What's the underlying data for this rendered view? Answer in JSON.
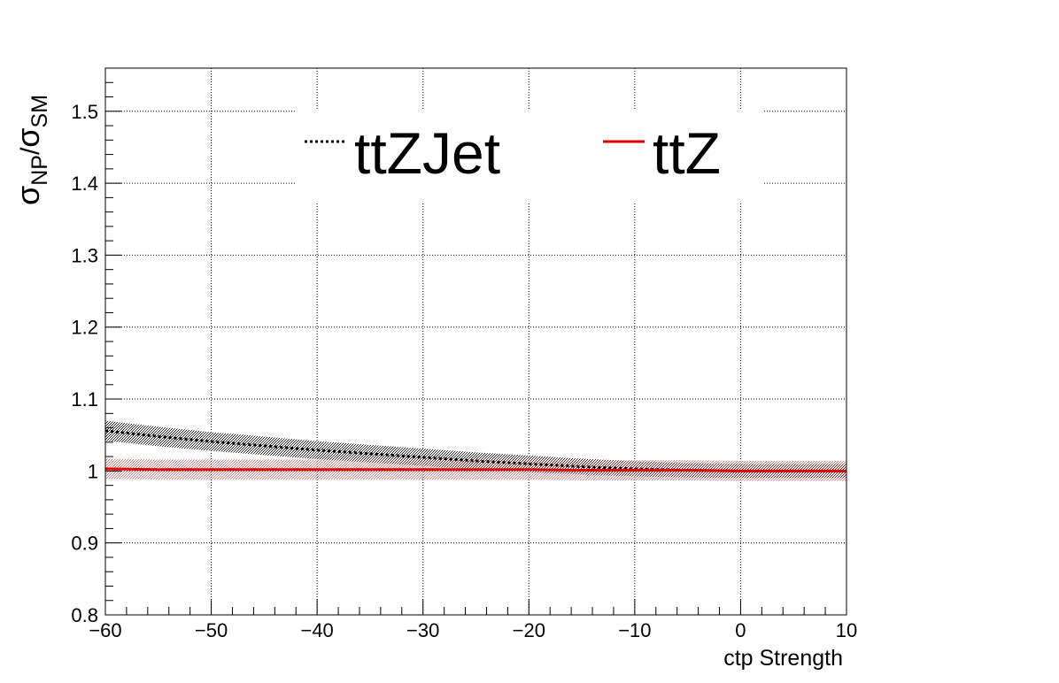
{
  "chart_data": {
    "type": "line",
    "xlabel": "ctp Strength",
    "ylabel": "σ_NP/σ_SM",
    "ylabel_parts": {
      "sym1": "σ",
      "sub1": "NP",
      "slash": "/",
      "sym2": "σ",
      "sub2": "SM"
    },
    "xlim": [
      -60,
      10
    ],
    "ylim": [
      0.8,
      1.56
    ],
    "x_ticks": [
      -60,
      -50,
      -40,
      -30,
      -20,
      -10,
      0,
      10
    ],
    "x_tick_labels": [
      "−60",
      "−50",
      "−40",
      "−30",
      "−20",
      "−10",
      "0",
      "10"
    ],
    "y_ticks": [
      0.8,
      0.9,
      1.0,
      1.1,
      1.2,
      1.3,
      1.4,
      1.5
    ],
    "y_tick_labels": [
      "0.8",
      "0.9",
      "1",
      "1.1",
      "1.2",
      "1.3",
      "1.4",
      "1.5"
    ],
    "grid": true,
    "legend_position": "top-center",
    "series": [
      {
        "name": "ttZJet",
        "style": "dotted",
        "color": "#000000",
        "band_color": "#000000",
        "x": [
          -60,
          -55,
          -50,
          -45,
          -40,
          -35,
          -30,
          -25,
          -20,
          -15,
          -10,
          -5,
          0,
          5,
          10
        ],
        "y": [
          1.056,
          1.048,
          1.041,
          1.035,
          1.029,
          1.024,
          1.019,
          1.014,
          1.01,
          1.006,
          1.003,
          1.001,
          1.0,
          1.0,
          1.0
        ],
        "band_halfwidth": [
          0.014,
          0.0135,
          0.013,
          0.0128,
          0.0125,
          0.0122,
          0.012,
          0.0118,
          0.0115,
          0.011,
          0.0105,
          0.01,
          0.0095,
          0.0095,
          0.0095
        ]
      },
      {
        "name": "ttZ",
        "style": "solid",
        "color": "#e00000",
        "band_color": "#e00000",
        "x": [
          -60,
          -55,
          -50,
          -45,
          -40,
          -35,
          -30,
          -25,
          -20,
          -15,
          -10,
          -5,
          0,
          5,
          10
        ],
        "y": [
          1.003,
          1.002,
          1.002,
          1.002,
          1.002,
          1.002,
          1.002,
          1.002,
          1.002,
          1.001,
          1.001,
          1.001,
          1.0,
          1.0,
          1.0
        ],
        "band_halfwidth": [
          0.014,
          0.014,
          0.014,
          0.014,
          0.014,
          0.014,
          0.014,
          0.014,
          0.014,
          0.014,
          0.014,
          0.014,
          0.014,
          0.014,
          0.014
        ]
      }
    ]
  }
}
